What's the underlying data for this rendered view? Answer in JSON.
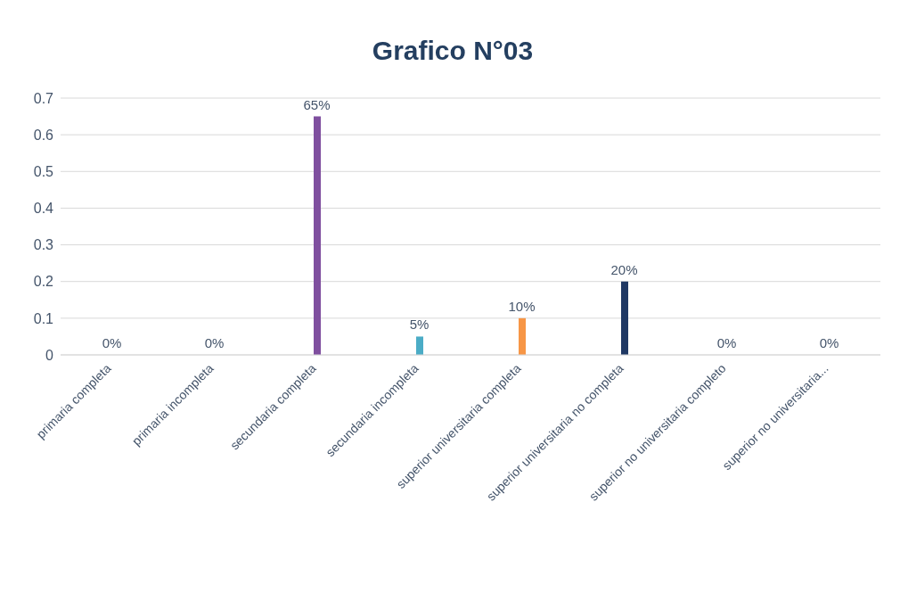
{
  "chart_data": {
    "type": "bar",
    "title": "Grafico N°03",
    "categories": [
      "primaria completa",
      "primaria incompleta",
      "secundaria completa",
      "secundaria incompleta",
      "superior universitaria completa",
      "superior universitaria no completa",
      "superior no universitaria completo",
      "superior no universitaria..."
    ],
    "values": [
      0,
      0,
      0.65,
      0.05,
      0.1,
      0.2,
      0,
      0
    ],
    "colors": [
      "#4472c4",
      "#c0504d",
      "#7f4f9f",
      "#4bacc6",
      "#f79646",
      "#1f3864",
      "#9bbb59",
      "#2c4d75"
    ],
    "value_labels": [
      "0%",
      "0%",
      "65%",
      "5%",
      "10%",
      "20%",
      "0%",
      "0%"
    ],
    "ylim": [
      0,
      0.7
    ],
    "yticks": [
      0,
      0.1,
      0.2,
      0.3,
      0.4,
      0.5,
      0.6,
      0.7
    ],
    "grid": "y",
    "legend": false
  }
}
